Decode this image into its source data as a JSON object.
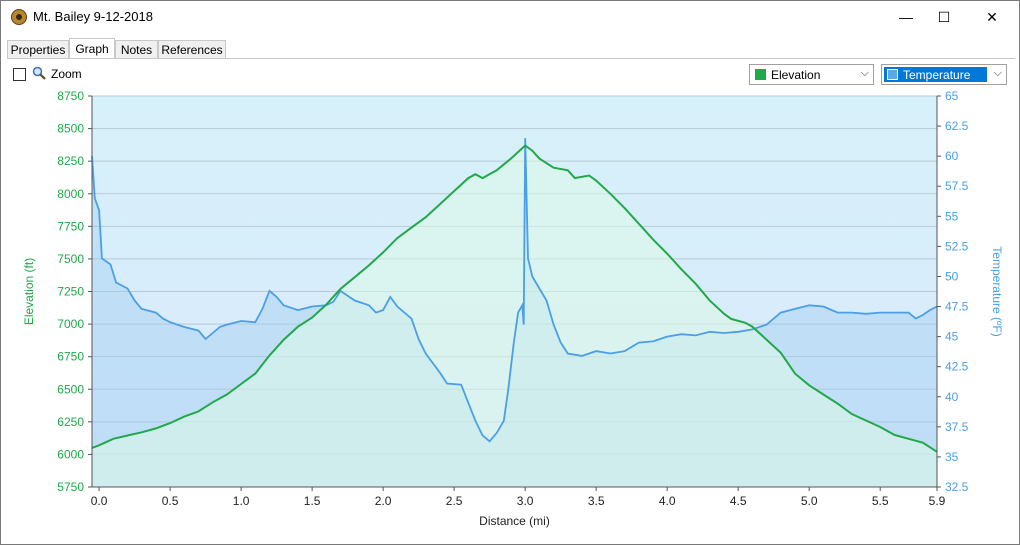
{
  "window": {
    "title": "Mt. Bailey 9-12-2018",
    "minimize": "—",
    "maximize": "☐",
    "close": "✕"
  },
  "tabs": [
    {
      "label": "Properties",
      "active": false
    },
    {
      "label": "Graph",
      "active": true
    },
    {
      "label": "Notes",
      "active": false
    },
    {
      "label": "References",
      "active": false
    }
  ],
  "toolbar": {
    "zoom_label": "Zoom",
    "zoom_checked": false,
    "select_left": {
      "label": "Elevation",
      "swatch": "#21a84a"
    },
    "select_right": {
      "label": "Temperature",
      "swatch": "#5aa9e6"
    }
  },
  "chart_data": {
    "type": "line",
    "xlabel": "Distance  (mi)",
    "ylabel_left": "Elevation (ft)",
    "ylabel_right": "Temperature (ºF)",
    "xlim": [
      -0.05,
      5.9
    ],
    "ylim_left": [
      5750,
      8750
    ],
    "ylim_right": [
      32.5,
      65
    ],
    "x_ticks": [
      "0.0",
      "0.5",
      "1.0",
      "1.5",
      "2.0",
      "2.5",
      "3.0",
      "3.5",
      "4.0",
      "4.5",
      "5.0",
      "5.5",
      "5.9"
    ],
    "y_left_ticks": [
      "5750",
      "6000",
      "6250",
      "6500",
      "6750",
      "7000",
      "7250",
      "7500",
      "7750",
      "8000",
      "8250",
      "8500",
      "8750"
    ],
    "y_right_ticks": [
      "32.5",
      "35",
      "37.5",
      "40",
      "42.5",
      "45",
      "47.5",
      "50",
      "52.5",
      "55",
      "57.5",
      "60",
      "62.5",
      "65"
    ],
    "grid": true,
    "series": [
      {
        "name": "Elevation",
        "axis": "left",
        "color": "#21a84a",
        "points": [
          [
            -0.05,
            6050
          ],
          [
            0.0,
            6070
          ],
          [
            0.1,
            6120
          ],
          [
            0.2,
            6145
          ],
          [
            0.3,
            6170
          ],
          [
            0.4,
            6200
          ],
          [
            0.5,
            6240
          ],
          [
            0.6,
            6290
          ],
          [
            0.7,
            6330
          ],
          [
            0.8,
            6400
          ],
          [
            0.9,
            6460
          ],
          [
            1.0,
            6540
          ],
          [
            1.1,
            6620
          ],
          [
            1.2,
            6760
          ],
          [
            1.3,
            6880
          ],
          [
            1.4,
            6980
          ],
          [
            1.5,
            7050
          ],
          [
            1.6,
            7150
          ],
          [
            1.7,
            7270
          ],
          [
            1.8,
            7360
          ],
          [
            1.9,
            7450
          ],
          [
            2.0,
            7550
          ],
          [
            2.1,
            7660
          ],
          [
            2.2,
            7740
          ],
          [
            2.3,
            7820
          ],
          [
            2.4,
            7920
          ],
          [
            2.5,
            8020
          ],
          [
            2.6,
            8120
          ],
          [
            2.65,
            8150
          ],
          [
            2.7,
            8120
          ],
          [
            2.8,
            8180
          ],
          [
            2.9,
            8270
          ],
          [
            3.0,
            8370
          ],
          [
            3.05,
            8330
          ],
          [
            3.1,
            8270
          ],
          [
            3.2,
            8200
          ],
          [
            3.3,
            8180
          ],
          [
            3.35,
            8120
          ],
          [
            3.45,
            8140
          ],
          [
            3.5,
            8100
          ],
          [
            3.6,
            8000
          ],
          [
            3.7,
            7890
          ],
          [
            3.8,
            7770
          ],
          [
            3.9,
            7650
          ],
          [
            4.0,
            7540
          ],
          [
            4.1,
            7420
          ],
          [
            4.2,
            7310
          ],
          [
            4.3,
            7180
          ],
          [
            4.4,
            7080
          ],
          [
            4.45,
            7040
          ],
          [
            4.55,
            7010
          ],
          [
            4.6,
            6980
          ],
          [
            4.7,
            6880
          ],
          [
            4.8,
            6780
          ],
          [
            4.9,
            6620
          ],
          [
            5.0,
            6530
          ],
          [
            5.1,
            6460
          ],
          [
            5.2,
            6390
          ],
          [
            5.3,
            6310
          ],
          [
            5.4,
            6260
          ],
          [
            5.5,
            6210
          ],
          [
            5.6,
            6150
          ],
          [
            5.7,
            6120
          ],
          [
            5.8,
            6090
          ],
          [
            5.9,
            6020
          ]
        ]
      },
      {
        "name": "Temperature",
        "axis": "right",
        "color": "#4a9fe6",
        "points": [
          [
            -0.05,
            60.0
          ],
          [
            -0.03,
            56.5
          ],
          [
            0.0,
            55.5
          ],
          [
            0.02,
            51.5
          ],
          [
            0.08,
            51.0
          ],
          [
            0.12,
            49.5
          ],
          [
            0.2,
            49.0
          ],
          [
            0.25,
            48.0
          ],
          [
            0.3,
            47.3
          ],
          [
            0.4,
            47.0
          ],
          [
            0.45,
            46.5
          ],
          [
            0.5,
            46.2
          ],
          [
            0.6,
            45.8
          ],
          [
            0.7,
            45.5
          ],
          [
            0.75,
            44.8
          ],
          [
            0.8,
            45.3
          ],
          [
            0.85,
            45.8
          ],
          [
            0.9,
            46.0
          ],
          [
            1.0,
            46.3
          ],
          [
            1.1,
            46.2
          ],
          [
            1.15,
            47.3
          ],
          [
            1.2,
            48.8
          ],
          [
            1.25,
            48.3
          ],
          [
            1.3,
            47.6
          ],
          [
            1.4,
            47.2
          ],
          [
            1.5,
            47.5
          ],
          [
            1.6,
            47.6
          ],
          [
            1.65,
            47.9
          ],
          [
            1.7,
            48.8
          ],
          [
            1.75,
            48.4
          ],
          [
            1.8,
            48.0
          ],
          [
            1.9,
            47.6
          ],
          [
            1.95,
            47.0
          ],
          [
            2.0,
            47.2
          ],
          [
            2.05,
            48.3
          ],
          [
            2.1,
            47.5
          ],
          [
            2.2,
            46.5
          ],
          [
            2.25,
            44.8
          ],
          [
            2.3,
            43.6
          ],
          [
            2.35,
            42.8
          ],
          [
            2.4,
            42.0
          ],
          [
            2.45,
            41.1
          ],
          [
            2.55,
            41.0
          ],
          [
            2.6,
            39.5
          ],
          [
            2.65,
            38.0
          ],
          [
            2.7,
            36.8
          ],
          [
            2.75,
            36.3
          ],
          [
            2.8,
            37.0
          ],
          [
            2.85,
            38.0
          ],
          [
            2.88,
            40.5
          ],
          [
            2.92,
            44.5
          ],
          [
            2.95,
            47.0
          ],
          [
            2.98,
            47.6
          ],
          [
            2.99,
            46.0
          ],
          [
            3.0,
            61.5
          ],
          [
            3.02,
            51.5
          ],
          [
            3.05,
            50.0
          ],
          [
            3.1,
            49.0
          ],
          [
            3.15,
            48.0
          ],
          [
            3.2,
            46.0
          ],
          [
            3.25,
            44.5
          ],
          [
            3.3,
            43.6
          ],
          [
            3.4,
            43.4
          ],
          [
            3.5,
            43.8
          ],
          [
            3.6,
            43.6
          ],
          [
            3.7,
            43.8
          ],
          [
            3.8,
            44.5
          ],
          [
            3.9,
            44.6
          ],
          [
            4.0,
            45.0
          ],
          [
            4.1,
            45.2
          ],
          [
            4.2,
            45.1
          ],
          [
            4.3,
            45.4
          ],
          [
            4.4,
            45.3
          ],
          [
            4.5,
            45.4
          ],
          [
            4.6,
            45.6
          ],
          [
            4.7,
            46.0
          ],
          [
            4.8,
            47.0
          ],
          [
            4.9,
            47.3
          ],
          [
            5.0,
            47.6
          ],
          [
            5.1,
            47.5
          ],
          [
            5.2,
            47.0
          ],
          [
            5.3,
            47.0
          ],
          [
            5.4,
            46.9
          ],
          [
            5.5,
            47.0
          ],
          [
            5.6,
            47.0
          ],
          [
            5.7,
            47.0
          ],
          [
            5.75,
            46.5
          ],
          [
            5.8,
            46.8
          ],
          [
            5.85,
            47.2
          ],
          [
            5.9,
            47.5
          ]
        ]
      }
    ],
    "colors": {
      "plot_bg_top": "#d7f1fa",
      "plot_bg_bottom": "#d8e8fc",
      "grid": "#b9c9d4",
      "left_axis_text": "#21a84a",
      "right_axis_text": "#4a9fe6"
    }
  }
}
